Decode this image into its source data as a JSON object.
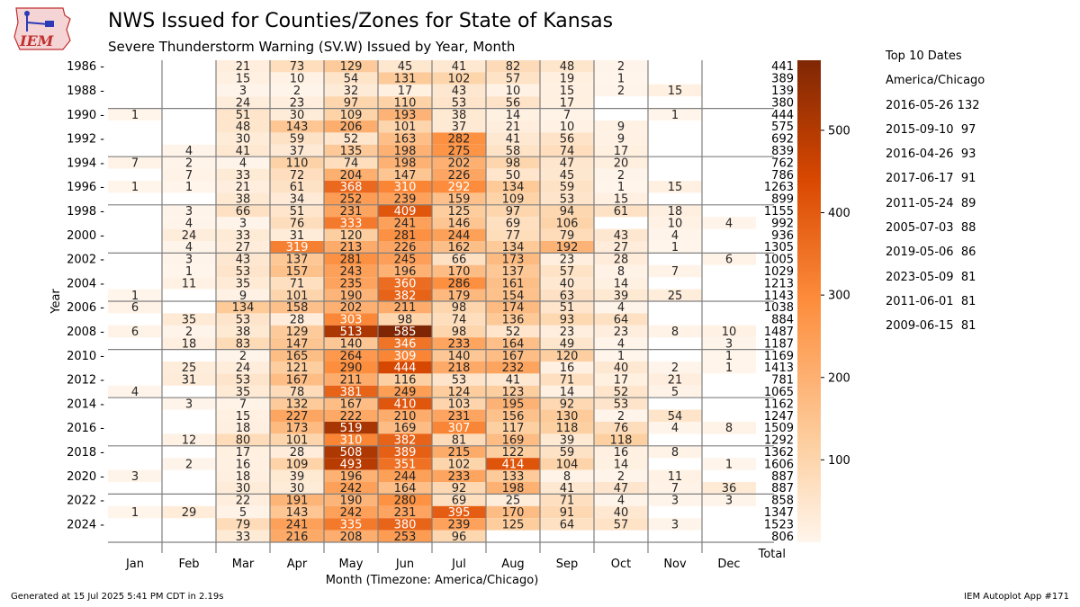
{
  "header": {
    "title": "NWS Issued for Counties/Zones for State of Kansas",
    "subtitle": "Severe Thunderstorm Warning (SV.W) Issued by Year, Month",
    "logo_text": "IEM"
  },
  "footer": {
    "generated": "Generated at 15 Jul 2025 5:41 PM CDT in 2.19s",
    "app": "IEM Autoplot App #171"
  },
  "sidebar": {
    "heading": "Top 10 Dates",
    "timezone": "America/Chicago",
    "dates": [
      "2016-05-26 132",
      "2015-09-10  97",
      "2016-04-26  93",
      "2017-06-17  91",
      "2011-05-24  89",
      "2005-07-03  88",
      "2019-05-06  86",
      "2023-05-09  81",
      "2011-06-01  81",
      "2009-06-15  81"
    ]
  },
  "chart_data": {
    "type": "heatmap",
    "xlabel": "Month (Timezone: America/Chicago)",
    "ylabel": "Year",
    "months": [
      "Jan",
      "Feb",
      "Mar",
      "Apr",
      "May",
      "Jun",
      "Jul",
      "Aug",
      "Sep",
      "Oct",
      "Nov",
      "Dec"
    ],
    "total_label": "Total",
    "years": [
      1986,
      1987,
      1988,
      1989,
      1990,
      1991,
      1992,
      1993,
      1994,
      1995,
      1996,
      1997,
      1998,
      1999,
      2000,
      2001,
      2002,
      2003,
      2004,
      2005,
      2006,
      2007,
      2008,
      2009,
      2010,
      2011,
      2012,
      2013,
      2014,
      2015,
      2016,
      2017,
      2018,
      2019,
      2020,
      2021,
      2022,
      2023,
      2024,
      2025
    ],
    "ytick_years": [
      1986,
      1988,
      1990,
      1992,
      1994,
      1996,
      1998,
      2000,
      2002,
      2004,
      2006,
      2008,
      2010,
      2012,
      2014,
      2016,
      2018,
      2020,
      2022,
      2024
    ],
    "values": [
      [
        null,
        null,
        21,
        73,
        129,
        45,
        41,
        82,
        48,
        2,
        null,
        null
      ],
      [
        null,
        null,
        15,
        10,
        54,
        131,
        102,
        57,
        19,
        1,
        null,
        null
      ],
      [
        null,
        null,
        3,
        2,
        32,
        17,
        43,
        10,
        15,
        2,
        15,
        null
      ],
      [
        null,
        null,
        24,
        23,
        97,
        110,
        53,
        56,
        17,
        null,
        null,
        null
      ],
      [
        1,
        null,
        51,
        30,
        109,
        193,
        38,
        14,
        7,
        null,
        1,
        null
      ],
      [
        null,
        null,
        48,
        143,
        206,
        101,
        37,
        21,
        10,
        9,
        null,
        null
      ],
      [
        null,
        null,
        30,
        59,
        52,
        163,
        282,
        41,
        56,
        9,
        null,
        null
      ],
      [
        null,
        4,
        41,
        37,
        135,
        198,
        275,
        58,
        74,
        17,
        null,
        null
      ],
      [
        7,
        2,
        4,
        110,
        74,
        198,
        202,
        98,
        47,
        20,
        null,
        null
      ],
      [
        null,
        7,
        33,
        72,
        204,
        147,
        226,
        50,
        45,
        2,
        null,
        null
      ],
      [
        1,
        1,
        21,
        61,
        368,
        310,
        292,
        134,
        59,
        1,
        15,
        null
      ],
      [
        null,
        null,
        38,
        34,
        252,
        239,
        159,
        109,
        53,
        15,
        null,
        null
      ],
      [
        null,
        3,
        66,
        51,
        231,
        409,
        125,
        97,
        94,
        61,
        18,
        null
      ],
      [
        null,
        4,
        3,
        76,
        333,
        241,
        146,
        69,
        106,
        null,
        10,
        4
      ],
      [
        null,
        24,
        33,
        31,
        120,
        281,
        244,
        77,
        79,
        43,
        4,
        null
      ],
      [
        null,
        4,
        27,
        319,
        213,
        226,
        162,
        134,
        192,
        27,
        1,
        null
      ],
      [
        null,
        3,
        43,
        137,
        281,
        245,
        66,
        173,
        23,
        28,
        null,
        6
      ],
      [
        null,
        1,
        53,
        157,
        243,
        196,
        170,
        137,
        57,
        8,
        7,
        null
      ],
      [
        null,
        11,
        35,
        71,
        235,
        360,
        286,
        161,
        40,
        14,
        null,
        null
      ],
      [
        1,
        null,
        9,
        101,
        190,
        382,
        179,
        154,
        63,
        39,
        25,
        null
      ],
      [
        6,
        null,
        134,
        158,
        202,
        211,
        98,
        174,
        51,
        4,
        null,
        null
      ],
      [
        null,
        35,
        53,
        28,
        303,
        98,
        74,
        136,
        93,
        64,
        null,
        null
      ],
      [
        6,
        2,
        38,
        129,
        513,
        585,
        98,
        52,
        23,
        23,
        8,
        10
      ],
      [
        null,
        18,
        83,
        147,
        140,
        346,
        233,
        164,
        49,
        4,
        null,
        3
      ],
      [
        null,
        null,
        2,
        165,
        264,
        309,
        140,
        167,
        120,
        1,
        null,
        1
      ],
      [
        null,
        25,
        24,
        121,
        290,
        444,
        218,
        232,
        16,
        40,
        2,
        1
      ],
      [
        null,
        31,
        53,
        167,
        211,
        116,
        53,
        41,
        71,
        17,
        21,
        null
      ],
      [
        4,
        null,
        35,
        78,
        381,
        249,
        124,
        123,
        14,
        52,
        5,
        null
      ],
      [
        null,
        3,
        7,
        132,
        167,
        410,
        103,
        195,
        92,
        53,
        null,
        null
      ],
      [
        null,
        null,
        15,
        227,
        222,
        210,
        231,
        156,
        130,
        2,
        54,
        null
      ],
      [
        null,
        null,
        18,
        173,
        519,
        169,
        307,
        117,
        118,
        76,
        4,
        8
      ],
      [
        null,
        12,
        80,
        101,
        310,
        382,
        81,
        169,
        39,
        118,
        null,
        null
      ],
      [
        null,
        null,
        17,
        28,
        508,
        389,
        215,
        122,
        59,
        16,
        8,
        null
      ],
      [
        null,
        2,
        16,
        109,
        493,
        351,
        102,
        414,
        104,
        14,
        null,
        1
      ],
      [
        3,
        null,
        18,
        39,
        196,
        244,
        233,
        133,
        8,
        2,
        11,
        null
      ],
      [
        null,
        null,
        30,
        30,
        242,
        164,
        92,
        198,
        41,
        47,
        7,
        36
      ],
      [
        null,
        null,
        22,
        191,
        190,
        280,
        69,
        25,
        71,
        4,
        3,
        3
      ],
      [
        1,
        29,
        5,
        143,
        242,
        231,
        395,
        170,
        91,
        40,
        null,
        null
      ],
      [
        null,
        null,
        79,
        241,
        335,
        380,
        239,
        125,
        64,
        57,
        3,
        null
      ],
      [
        null,
        null,
        33,
        216,
        208,
        253,
        96,
        null,
        null,
        null,
        null,
        null
      ]
    ],
    "totals": [
      441,
      389,
      139,
      380,
      444,
      575,
      692,
      839,
      762,
      786,
      1263,
      899,
      1155,
      992,
      936,
      1305,
      1005,
      1029,
      1213,
      1143,
      1038,
      884,
      1487,
      1187,
      1169,
      1413,
      781,
      1065,
      1162,
      1247,
      1509,
      1292,
      1362,
      1606,
      887,
      887,
      858,
      1347,
      1523,
      806
    ],
    "colorbar": {
      "min": 0,
      "max": 585,
      "ticks": [
        100,
        200,
        300,
        400,
        500
      ]
    },
    "colors": {
      "low": "#fff5eb",
      "mid1": "#fdd0a2",
      "mid2": "#fd8d3c",
      "mid3": "#d94801",
      "high": "#7f2704",
      "grid": "#808080"
    }
  }
}
